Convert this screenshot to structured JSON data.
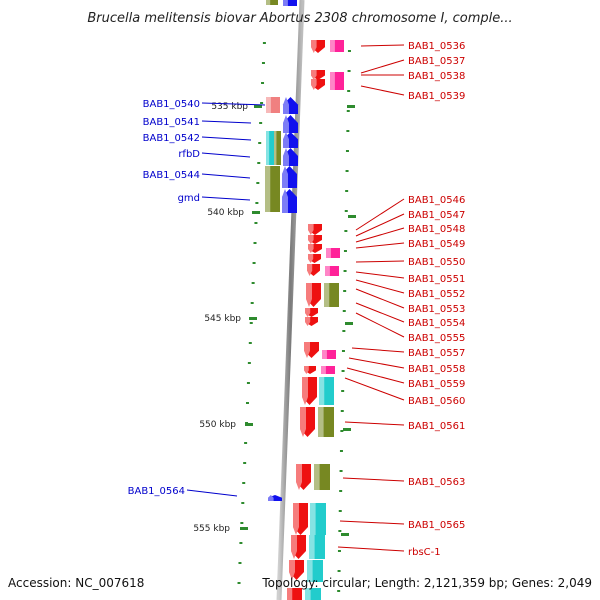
{
  "title": "Brucella melitensis biovar Abortus 2308 chromosome I, comple...",
  "footer": {
    "accession": "Accession: NC_007618",
    "topology": "Topology: circular; Length: 2,121,359 bp; Genes: 2,049"
  },
  "colors": {
    "plus_label": "#cc0000",
    "minus_label": "#0000cc",
    "backbone": "#888888",
    "ticks": "#2e8b2e",
    "red": "#ee1111",
    "pink": "#ff2299",
    "blue": "#1111ee",
    "cyan": "#22cccc",
    "olive": "#778822",
    "salmon": "#f08080"
  },
  "scale_ticks": [
    {
      "label": "535 kbp"
    },
    {
      "label": "540 kbp"
    },
    {
      "label": "545 kbp"
    },
    {
      "label": "550 kbp"
    },
    {
      "label": "555 kbp"
    }
  ],
  "right_labels": [
    {
      "text": "BAB1_0536"
    },
    {
      "text": "BAB1_0537"
    },
    {
      "text": "BAB1_0538"
    },
    {
      "text": "BAB1_0539"
    },
    {
      "text": "BAB1_0546"
    },
    {
      "text": "BAB1_0547"
    },
    {
      "text": "BAB1_0548"
    },
    {
      "text": "BAB1_0549"
    },
    {
      "text": "BAB1_0550"
    },
    {
      "text": "BAB1_0551"
    },
    {
      "text": "BAB1_0552"
    },
    {
      "text": "BAB1_0553"
    },
    {
      "text": "BAB1_0554"
    },
    {
      "text": "BAB1_0555"
    },
    {
      "text": "BAB1_0557"
    },
    {
      "text": "BAB1_0558"
    },
    {
      "text": "BAB1_0559"
    },
    {
      "text": "BAB1_0560"
    },
    {
      "text": "BAB1_0561"
    },
    {
      "text": "BAB1_0563"
    },
    {
      "text": "BAB1_0565"
    },
    {
      "text": "rbsC-1"
    }
  ],
  "left_labels": [
    {
      "text": "BAB1_0540"
    },
    {
      "text": "BAB1_0541"
    },
    {
      "text": "BAB1_0542"
    },
    {
      "text": "rfbD"
    },
    {
      "text": "BAB1_0544"
    },
    {
      "text": "gmd"
    },
    {
      "text": "BAB1_0564"
    }
  ]
}
